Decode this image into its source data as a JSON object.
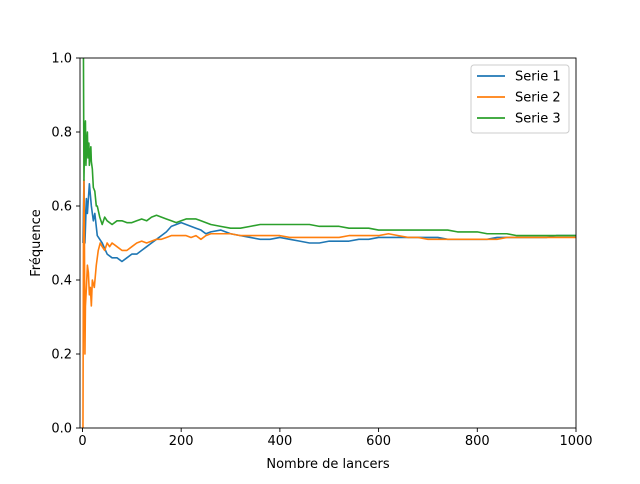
{
  "chart_data": {
    "type": "line",
    "title": "",
    "xlabel": "Nombre de lancers",
    "ylabel": "Fréquence",
    "xlim": [
      -5,
      1000
    ],
    "ylim": [
      0.0,
      1.0
    ],
    "xticks": [
      0,
      200,
      400,
      600,
      800,
      1000
    ],
    "yticks": [
      0.0,
      0.2,
      0.4,
      0.6,
      0.8,
      1.0
    ],
    "ytick_labels": [
      "0.0",
      "0.2",
      "0.4",
      "0.6",
      "0.8",
      "1.0"
    ],
    "grid": false,
    "legend_position": "top-right",
    "series": [
      {
        "name": "Serie 1",
        "color": "#1f77b4",
        "points": [
          [
            1,
            0.5
          ],
          [
            3,
            0.67
          ],
          [
            5,
            0.5
          ],
          [
            8,
            0.62
          ],
          [
            10,
            0.58
          ],
          [
            14,
            0.66
          ],
          [
            18,
            0.6
          ],
          [
            22,
            0.56
          ],
          [
            25,
            0.58
          ],
          [
            30,
            0.52
          ],
          [
            40,
            0.5
          ],
          [
            50,
            0.47
          ],
          [
            60,
            0.46
          ],
          [
            70,
            0.46
          ],
          [
            80,
            0.45
          ],
          [
            90,
            0.46
          ],
          [
            100,
            0.47
          ],
          [
            110,
            0.47
          ],
          [
            120,
            0.48
          ],
          [
            130,
            0.49
          ],
          [
            140,
            0.5
          ],
          [
            150,
            0.51
          ],
          [
            160,
            0.52
          ],
          [
            170,
            0.53
          ],
          [
            180,
            0.545
          ],
          [
            190,
            0.55
          ],
          [
            200,
            0.555
          ],
          [
            210,
            0.55
          ],
          [
            220,
            0.545
          ],
          [
            230,
            0.54
          ],
          [
            240,
            0.535
          ],
          [
            250,
            0.525
          ],
          [
            260,
            0.53
          ],
          [
            280,
            0.535
          ],
          [
            300,
            0.525
          ],
          [
            320,
            0.52
          ],
          [
            340,
            0.515
          ],
          [
            360,
            0.51
          ],
          [
            380,
            0.51
          ],
          [
            400,
            0.515
          ],
          [
            420,
            0.51
          ],
          [
            440,
            0.505
          ],
          [
            460,
            0.5
          ],
          [
            480,
            0.5
          ],
          [
            500,
            0.505
          ],
          [
            520,
            0.505
          ],
          [
            540,
            0.505
          ],
          [
            560,
            0.51
          ],
          [
            580,
            0.51
          ],
          [
            600,
            0.515
          ],
          [
            620,
            0.515
          ],
          [
            640,
            0.515
          ],
          [
            660,
            0.515
          ],
          [
            680,
            0.515
          ],
          [
            700,
            0.515
          ],
          [
            720,
            0.515
          ],
          [
            740,
            0.51
          ],
          [
            760,
            0.51
          ],
          [
            780,
            0.51
          ],
          [
            800,
            0.51
          ],
          [
            820,
            0.51
          ],
          [
            840,
            0.515
          ],
          [
            860,
            0.515
          ],
          [
            880,
            0.515
          ],
          [
            900,
            0.515
          ],
          [
            920,
            0.515
          ],
          [
            940,
            0.515
          ],
          [
            960,
            0.52
          ],
          [
            980,
            0.52
          ],
          [
            1000,
            0.52
          ]
        ]
      },
      {
        "name": "Serie 2",
        "color": "#ff7f0e",
        "points": [
          [
            1,
            0.0
          ],
          [
            2,
            0.5
          ],
          [
            3,
            0.67
          ],
          [
            4,
            0.5
          ],
          [
            5,
            0.2
          ],
          [
            6,
            0.33
          ],
          [
            8,
            0.38
          ],
          [
            10,
            0.44
          ],
          [
            12,
            0.42
          ],
          [
            14,
            0.36
          ],
          [
            16,
            0.38
          ],
          [
            18,
            0.33
          ],
          [
            20,
            0.4
          ],
          [
            24,
            0.38
          ],
          [
            28,
            0.44
          ],
          [
            32,
            0.48
          ],
          [
            36,
            0.5
          ],
          [
            40,
            0.49
          ],
          [
            45,
            0.48
          ],
          [
            50,
            0.5
          ],
          [
            55,
            0.49
          ],
          [
            60,
            0.5
          ],
          [
            70,
            0.49
          ],
          [
            80,
            0.48
          ],
          [
            90,
            0.48
          ],
          [
            100,
            0.49
          ],
          [
            110,
            0.5
          ],
          [
            120,
            0.505
          ],
          [
            130,
            0.5
          ],
          [
            140,
            0.505
          ],
          [
            150,
            0.51
          ],
          [
            160,
            0.51
          ],
          [
            170,
            0.515
          ],
          [
            180,
            0.52
          ],
          [
            190,
            0.52
          ],
          [
            200,
            0.52
          ],
          [
            210,
            0.52
          ],
          [
            220,
            0.515
          ],
          [
            230,
            0.52
          ],
          [
            240,
            0.51
          ],
          [
            250,
            0.52
          ],
          [
            260,
            0.525
          ],
          [
            280,
            0.525
          ],
          [
            300,
            0.525
          ],
          [
            320,
            0.52
          ],
          [
            340,
            0.52
          ],
          [
            360,
            0.52
          ],
          [
            380,
            0.52
          ],
          [
            400,
            0.52
          ],
          [
            420,
            0.515
          ],
          [
            440,
            0.515
          ],
          [
            460,
            0.515
          ],
          [
            480,
            0.515
          ],
          [
            500,
            0.515
          ],
          [
            520,
            0.515
          ],
          [
            540,
            0.52
          ],
          [
            560,
            0.52
          ],
          [
            580,
            0.52
          ],
          [
            600,
            0.52
          ],
          [
            620,
            0.525
          ],
          [
            640,
            0.52
          ],
          [
            660,
            0.515
          ],
          [
            680,
            0.515
          ],
          [
            700,
            0.51
          ],
          [
            720,
            0.51
          ],
          [
            740,
            0.51
          ],
          [
            760,
            0.51
          ],
          [
            780,
            0.51
          ],
          [
            800,
            0.51
          ],
          [
            820,
            0.51
          ],
          [
            840,
            0.51
          ],
          [
            860,
            0.515
          ],
          [
            880,
            0.515
          ],
          [
            900,
            0.515
          ],
          [
            920,
            0.515
          ],
          [
            940,
            0.515
          ],
          [
            960,
            0.515
          ],
          [
            980,
            0.515
          ],
          [
            1000,
            0.515
          ]
        ]
      },
      {
        "name": "Serie 3",
        "color": "#2ca02c",
        "points": [
          [
            1,
            1.0
          ],
          [
            2,
            1.0
          ],
          [
            3,
            0.67
          ],
          [
            4,
            0.75
          ],
          [
            5,
            0.8
          ],
          [
            6,
            0.83
          ],
          [
            7,
            0.71
          ],
          [
            8,
            0.75
          ],
          [
            9,
            0.78
          ],
          [
            10,
            0.8
          ],
          [
            11,
            0.73
          ],
          [
            12,
            0.75
          ],
          [
            13,
            0.77
          ],
          [
            14,
            0.71
          ],
          [
            15,
            0.73
          ],
          [
            16,
            0.75
          ],
          [
            17,
            0.76
          ],
          [
            18,
            0.72
          ],
          [
            20,
            0.7
          ],
          [
            22,
            0.65
          ],
          [
            25,
            0.64
          ],
          [
            28,
            0.6
          ],
          [
            30,
            0.6
          ],
          [
            35,
            0.57
          ],
          [
            40,
            0.55
          ],
          [
            45,
            0.57
          ],
          [
            50,
            0.56
          ],
          [
            60,
            0.55
          ],
          [
            70,
            0.56
          ],
          [
            80,
            0.56
          ],
          [
            90,
            0.555
          ],
          [
            100,
            0.555
          ],
          [
            110,
            0.56
          ],
          [
            120,
            0.565
          ],
          [
            130,
            0.56
          ],
          [
            140,
            0.57
          ],
          [
            150,
            0.575
          ],
          [
            160,
            0.57
          ],
          [
            170,
            0.565
          ],
          [
            180,
            0.56
          ],
          [
            190,
            0.555
          ],
          [
            200,
            0.56
          ],
          [
            210,
            0.565
          ],
          [
            220,
            0.565
          ],
          [
            230,
            0.565
          ],
          [
            240,
            0.56
          ],
          [
            250,
            0.555
          ],
          [
            260,
            0.55
          ],
          [
            280,
            0.545
          ],
          [
            300,
            0.54
          ],
          [
            320,
            0.54
          ],
          [
            340,
            0.545
          ],
          [
            360,
            0.55
          ],
          [
            380,
            0.55
          ],
          [
            400,
            0.55
          ],
          [
            420,
            0.55
          ],
          [
            440,
            0.55
          ],
          [
            460,
            0.55
          ],
          [
            480,
            0.545
          ],
          [
            500,
            0.545
          ],
          [
            520,
            0.545
          ],
          [
            540,
            0.54
          ],
          [
            560,
            0.54
          ],
          [
            580,
            0.54
          ],
          [
            600,
            0.535
          ],
          [
            620,
            0.535
          ],
          [
            640,
            0.535
          ],
          [
            660,
            0.535
          ],
          [
            680,
            0.535
          ],
          [
            700,
            0.535
          ],
          [
            720,
            0.535
          ],
          [
            740,
            0.535
          ],
          [
            760,
            0.53
          ],
          [
            780,
            0.53
          ],
          [
            800,
            0.53
          ],
          [
            820,
            0.525
          ],
          [
            840,
            0.525
          ],
          [
            860,
            0.525
          ],
          [
            880,
            0.52
          ],
          [
            900,
            0.52
          ],
          [
            920,
            0.52
          ],
          [
            940,
            0.52
          ],
          [
            960,
            0.52
          ],
          [
            980,
            0.52
          ],
          [
            1000,
            0.52
          ]
        ]
      }
    ]
  }
}
